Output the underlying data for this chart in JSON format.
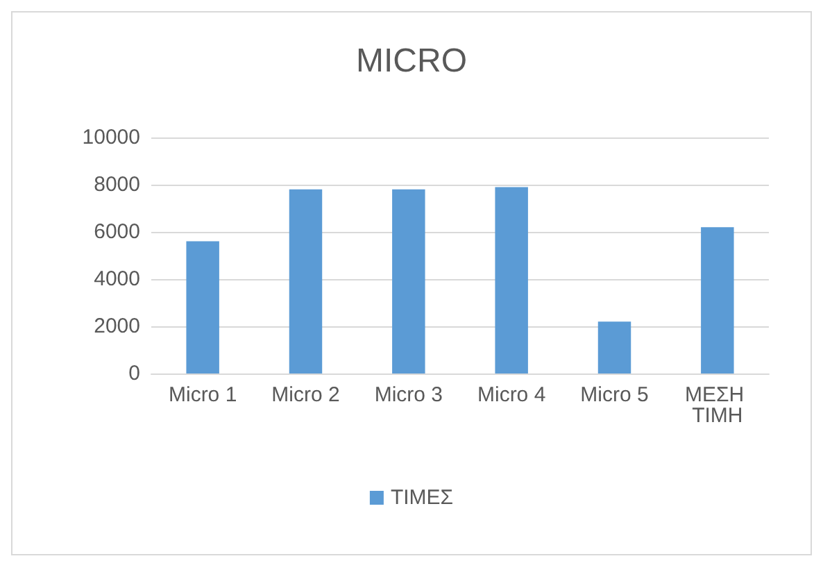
{
  "chart_data": {
    "type": "bar",
    "title": "MICRO",
    "categories": [
      "Micro 1",
      "Micro 2",
      "Micro 3",
      "Micro 4",
      "Micro 5",
      "ΜΕΣΗ ΤΙΜΗ"
    ],
    "series": [
      {
        "name": "ΤΙΜΕΣ",
        "color": "#5b9bd5",
        "values": [
          5600,
          7800,
          7800,
          7900,
          2200,
          6200
        ]
      }
    ],
    "ylim": [
      0,
      10000
    ],
    "yticks": [
      0,
      2000,
      4000,
      6000,
      8000,
      10000
    ],
    "grid": "y",
    "legend": "bottom"
  }
}
